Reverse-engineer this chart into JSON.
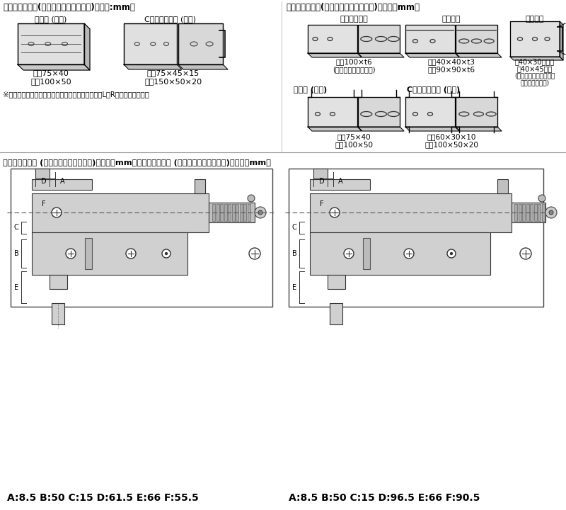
{
  "bg_color": "#ffffff",
  "title_left": "加工材料と寸法(ロングポンチ＋ダイス)【単位:mm】",
  "title_right": "加工材料と寸法(ポンチ＋ロングダイス)【単位：mm】",
  "label_mizo_side": "溝形鋼 (側面)",
  "label_c_side": "Cチャンネル鋼 (側面)",
  "spec_mizo1": "最小75×40",
  "spec_mizo2": "最大100×50",
  "spec_c1": "最小75×45×15",
  "spec_c2": "最大150×50×20",
  "note": "※ロングポンチ使用の場合は、ロングストリッパーL・Rをご使用ください",
  "label_flat": "フラットバー",
  "spec_flat1": "最大100×t6",
  "spec_flat2": "(センターへの穴あけ)",
  "label_angle": "アングル",
  "spec_angle1": "最小40×40×t3",
  "spec_angle2": "最大90×90×t6",
  "label_duct": "ダクター",
  "spec_duct1": "巾40×30および",
  "spec_duct2": "巾40×45可能",
  "spec_duct3": "(ダクター専用ダイスを",
  "spec_duct4": "ご使用ください)",
  "label_mizo_back": "溝形鋼 (背面)",
  "spec_mizo_back1": "最小75×40",
  "spec_mizo_back2": "最大100×50",
  "label_c_back": "Cチャンネル鋼 (背面)",
  "spec_c_back1": "最小60×30×10",
  "spec_c_back2": "最大100×50×20",
  "bottom_title": "アゴ部分寸法図 (ロングポンチ＋ダイス)【単位：mm】アゴ部分寸法図 (ポンチ＋ロングダイス)【単位：mm】",
  "left_dims": "A:8.5 B:50 C:15 D:61.5 E:66 F:55.5",
  "right_dims": "A:8.5 B:50 C:15 D:96.5 E:66 F:90.5"
}
